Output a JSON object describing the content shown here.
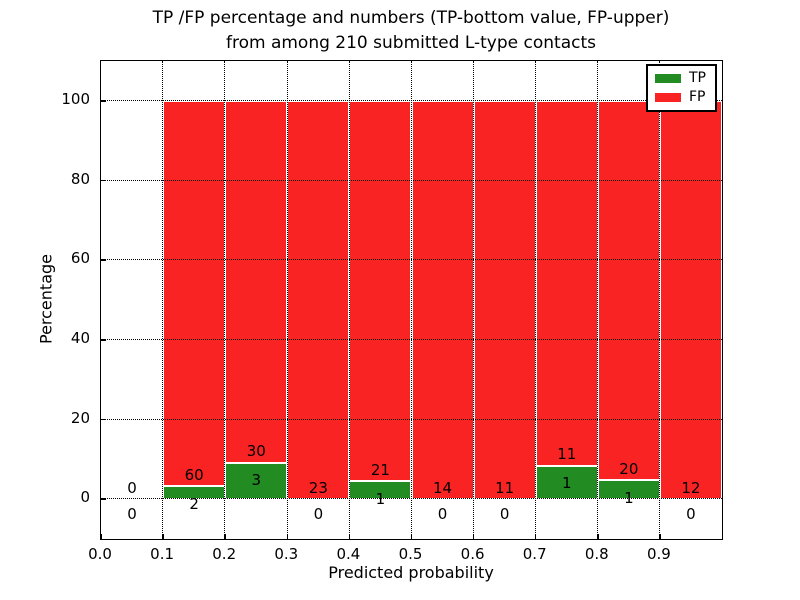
{
  "chart_data": {
    "type": "bar",
    "stacked": true,
    "title_line1": "TP /FP percentage and numbers (TP-bottom value, FP-upper)",
    "title_line2": "from among 210 submitted L-type contacts",
    "xlabel": "Predicted probability",
    "ylabel": "Percentage",
    "xlim": [
      0.0,
      1.0
    ],
    "ylim": [
      -10,
      110
    ],
    "xticks": [
      "0.0",
      "0.1",
      "0.2",
      "0.3",
      "0.4",
      "0.5",
      "0.6",
      "0.7",
      "0.8",
      "0.9"
    ],
    "yticks": [
      0,
      20,
      40,
      60,
      80,
      100
    ],
    "grid": "dotted-black-both-axes",
    "bar_edge_color": "#ffffff",
    "bin_width": 0.1,
    "bin_starts": [
      0.0,
      0.1,
      0.2,
      0.3,
      0.4,
      0.5,
      0.6,
      0.7,
      0.8,
      0.9
    ],
    "series": [
      {
        "name": "TP",
        "color": "#228b22",
        "values": [
          0,
          2,
          3,
          0,
          1,
          0,
          0,
          1,
          1,
          0
        ]
      },
      {
        "name": "FP",
        "color": "#fa2323",
        "values": [
          0,
          60,
          30,
          23,
          21,
          14,
          11,
          11,
          20,
          12
        ]
      }
    ],
    "note": "Bars show TP/(TP+FP) percentage in green from 0 up, FP percentage in red stacked to 100. Numeric labels: FP count above segment boundary, TP count below it.",
    "legend": {
      "position": "upper right",
      "items": [
        {
          "label": "TP",
          "color": "#228b22"
        },
        {
          "label": "FP",
          "color": "#fa2323"
        }
      ]
    }
  }
}
